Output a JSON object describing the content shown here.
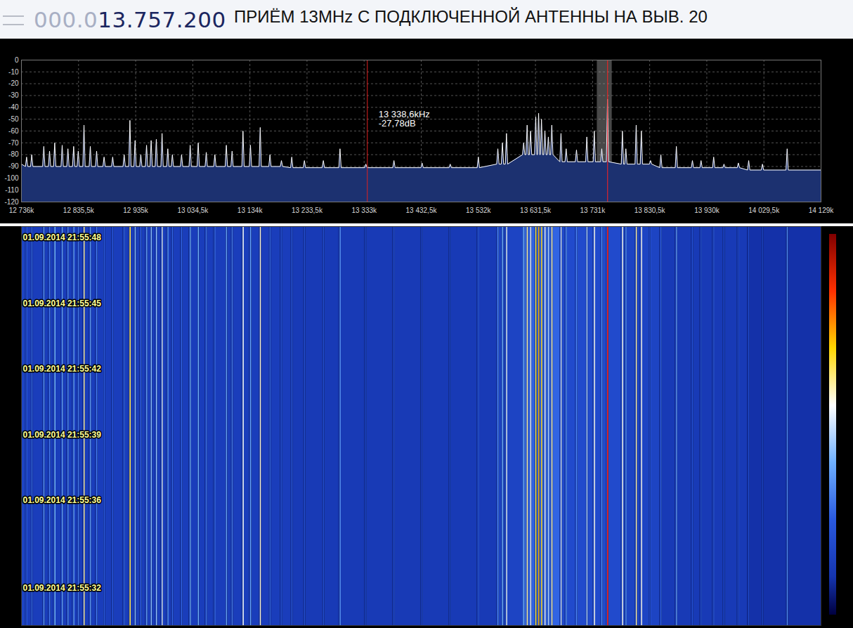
{
  "chart_data": [
    {
      "type": "line",
      "title": "ПРИЁМ 13MHz С ПОДКЛЮЧЕННОЙ АНТЕННЫ НА ВЫВ. 20",
      "readout": [
        "000.0",
        "13.757.200"
      ],
      "color": "#ffffff",
      "grid": true,
      "xlim": [
        12736,
        14129
      ],
      "xticks": [
        {
          "value": 12736,
          "label": "12 736k"
        },
        {
          "value": 12835.5,
          "label": "12 835,5k"
        },
        {
          "value": 12935,
          "label": "12 935k"
        },
        {
          "value": 13034.5,
          "label": "13 034,5k"
        },
        {
          "value": 13134,
          "label": "13 134k"
        },
        {
          "value": 13233.5,
          "label": "13 233,5k"
        },
        {
          "value": 13333,
          "label": "13 333k"
        },
        {
          "value": 13432.5,
          "label": "13 432,5k"
        },
        {
          "value": 13532,
          "label": "13 532k"
        },
        {
          "value": 13631.5,
          "label": "13 631,5k"
        },
        {
          "value": 13731,
          "label": "13 731k"
        },
        {
          "value": 13830.5,
          "label": "13 830,5k"
        },
        {
          "value": 13930,
          "label": "13 930k"
        },
        {
          "value": 14029.5,
          "label": "14 029,5k"
        },
        {
          "value": 14129,
          "label": "14 129k"
        }
      ],
      "ylim": [
        -120,
        0
      ],
      "yticks": [
        0,
        -10,
        -20,
        -30,
        -40,
        -50,
        -60,
        -70,
        -80,
        -90,
        -100,
        -110,
        -120
      ],
      "cursor": {
        "x": 13338.6,
        "text": [
          "13 338,6kHz",
          "-27,78dB"
        ]
      },
      "tuned": {
        "x": 13757.2,
        "band": [
          13739,
          13765
        ]
      },
      "x": [
        12736,
        12743,
        12745,
        12747,
        12752,
        12754,
        12756,
        12773,
        12775,
        12777,
        12783,
        12785,
        12787,
        12792,
        12794,
        12796,
        12805,
        12807,
        12809,
        12815,
        12817,
        12819,
        12825,
        12827,
        12829,
        12833,
        12835,
        12837,
        12843,
        12845,
        12847,
        12854,
        12856,
        12858,
        12865,
        12867,
        12869,
        12878,
        12880,
        12882,
        12893,
        12895,
        12897,
        12913,
        12915,
        12917,
        12923,
        12925,
        12927,
        12932,
        12934,
        12936,
        12942,
        12944,
        12946,
        12952,
        12954,
        12956,
        12960,
        12962,
        12964,
        12969,
        12971,
        12973,
        12979,
        12981,
        12983,
        12989,
        12991,
        12993,
        12997,
        12999,
        13001,
        13013,
        13015,
        13017,
        13028,
        13030,
        13032,
        13042,
        13044,
        13046,
        13056,
        13058,
        13060,
        13071,
        13073,
        13075,
        13091,
        13093,
        13095,
        13101,
        13103,
        13105,
        13120,
        13122,
        13124,
        13133,
        13135,
        13137,
        13150,
        13152,
        13154,
        13167,
        13169,
        13171,
        13187,
        13189,
        13191,
        13205,
        13207,
        13209,
        13227,
        13229,
        13231,
        13260,
        13262,
        13264,
        13289,
        13291,
        13293,
        13334,
        13336,
        13338,
        13383,
        13385,
        13387,
        13432,
        13434,
        13436,
        13481,
        13483,
        13485,
        13530,
        13532,
        13534,
        13564,
        13566,
        13568,
        13572,
        13574,
        13576,
        13579,
        13581,
        13583,
        13609,
        13611,
        13613,
        13615,
        13617,
        13619,
        13621,
        13623,
        13625,
        13630,
        13632,
        13634,
        13635,
        13637,
        13639,
        13640,
        13642,
        13644,
        13646,
        13648,
        13650,
        13652,
        13654,
        13656,
        13658,
        13660,
        13662,
        13674,
        13676,
        13678,
        13683,
        13685,
        13687,
        13701,
        13703,
        13705,
        13719,
        13721,
        13723,
        13732,
        13734,
        13736,
        13745,
        13747,
        13749,
        13755,
        13757,
        13759,
        13781,
        13783,
        13785,
        13787,
        13789,
        13791,
        13805,
        13807,
        13809,
        13814,
        13816,
        13818,
        13830,
        13832,
        13834,
        13848,
        13850,
        13852,
        13875,
        13877,
        13879,
        13903,
        13905,
        13907,
        13918,
        13920,
        13922,
        13940,
        13942,
        13944,
        13958,
        13960,
        13962,
        13983,
        13985,
        13987,
        14001,
        14003,
        14005,
        14025,
        14027,
        14029,
        14068,
        14070,
        14072,
        14129
      ],
      "values": [
        -88,
        -90,
        -82,
        -90,
        -90,
        -80,
        -90,
        -90,
        -73,
        -90,
        -90,
        -77,
        -90,
        -90,
        -70,
        -90,
        -90,
        -72,
        -90,
        -90,
        -75,
        -90,
        -90,
        -73,
        -90,
        -90,
        -77,
        -90,
        -90,
        -55,
        -90,
        -90,
        -73,
        -90,
        -90,
        -77,
        -90,
        -90,
        -82,
        -90,
        -90,
        -82,
        -90,
        -90,
        -80,
        -90,
        -90,
        -51,
        -90,
        -90,
        -68,
        -90,
        -90,
        -80,
        -90,
        -90,
        -72,
        -90,
        -90,
        -68,
        -90,
        -90,
        -67,
        -90,
        -90,
        -62,
        -90,
        -90,
        -75,
        -90,
        -90,
        -80,
        -90,
        -90,
        -80,
        -90,
        -90,
        -72,
        -90,
        -90,
        -70,
        -90,
        -90,
        -78,
        -90,
        -90,
        -80,
        -90,
        -90,
        -72,
        -90,
        -90,
        -77,
        -90,
        -90,
        -60,
        -90,
        -90,
        -72,
        -90,
        -90,
        -57,
        -90,
        -90,
        -80,
        -90,
        -90,
        -85,
        -90,
        -91,
        -82,
        -91,
        -91,
        -85,
        -91,
        -91,
        -85,
        -91,
        -91,
        -75,
        -91,
        -91,
        -88,
        -91,
        -91,
        -85,
        -91,
        -91,
        -87,
        -91,
        -91,
        -88,
        -91,
        -91,
        -82,
        -91,
        -88,
        -75,
        -88,
        -88,
        -70,
        -88,
        -88,
        -62,
        -88,
        -80,
        -70,
        -80,
        -80,
        -55,
        -80,
        -80,
        -60,
        -80,
        -80,
        -48,
        -80,
        -80,
        -45,
        -80,
        -80,
        -50,
        -80,
        -80,
        -60,
        -80,
        -80,
        -65,
        -80,
        -80,
        -55,
        -80,
        -86,
        -62,
        -86,
        -86,
        -75,
        -86,
        -86,
        -76,
        -86,
        -86,
        -65,
        -86,
        -86,
        -60,
        -86,
        -86,
        -75,
        -86,
        -86,
        -33,
        -86,
        -88,
        -60,
        -88,
        -88,
        -75,
        -88,
        -88,
        -55,
        -88,
        -88,
        -60,
        -88,
        -88,
        -85,
        -88,
        -91,
        -80,
        -91,
        -91,
        -73,
        -91,
        -91,
        -85,
        -91,
        -91,
        -85,
        -91,
        -91,
        -82,
        -91,
        -91,
        -88,
        -91,
        -91,
        -87,
        -91,
        -93,
        -85,
        -93,
        -93,
        -88,
        -93,
        -93,
        -75,
        -93,
        -93
      ]
    },
    {
      "type": "waterfall",
      "ylim": [
        30.3,
        48.5
      ],
      "yticks": [
        {
          "value": 48,
          "label": "01.09.2014 21:55:48"
        },
        {
          "value": 45,
          "label": "01.09.2014 21:55:45"
        },
        {
          "value": 42,
          "label": "01.09.2014 21:55:42"
        },
        {
          "value": 39,
          "label": "01.09.2014 21:55:39"
        },
        {
          "value": 36,
          "label": "01.09.2014 21:55:36"
        },
        {
          "value": 32,
          "label": "01.09.2014 21:55:32"
        }
      ],
      "color_range": [
        -100,
        -25
      ]
    }
  ]
}
